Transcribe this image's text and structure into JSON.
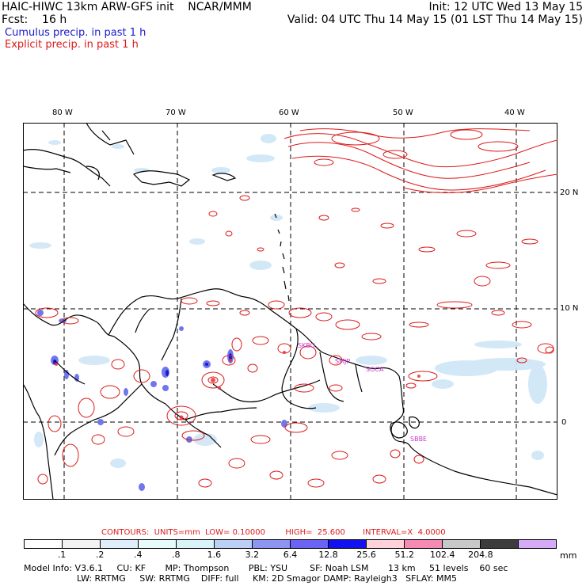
{
  "header": {
    "title": "HAIC-HIWC 13km ARW-GFS init    NCAR/MMM",
    "fcst": "Fcst:    16 h",
    "init": "Init: 12 UTC Wed 13 May 15",
    "valid": "Valid: 04 UTC Thu 14 May 15 (01 LST Thu 14 May 15)",
    "cumulus": "Cumulus precip. in past 1 h",
    "explicit": "Explicit precip. in past 1 h"
  },
  "map": {
    "lon_labels": [
      "80 W",
      "70 W",
      "60 W",
      "50 W",
      "40 W"
    ],
    "lat_labels": [
      "20 N",
      "10 N",
      "0"
    ],
    "stations": [
      "SKBO",
      "SMJP",
      "SOCA",
      "SBBE"
    ],
    "colors": {
      "coast": "#000000",
      "explicit": "#dd1a1a",
      "cumulus_light": "#cfe6f7",
      "cumulus_mid": "#6f76ee",
      "cumulus_dark": "#1a1acc"
    }
  },
  "legend": {
    "contours": "CONTOURS:  UNITS=mm  LOW= 0.10000        HIGH=  25.600       INTERVAL=X  4.0000",
    "labels": [
      ".1",
      ".2",
      ".4",
      ".8",
      "1.6",
      "3.2",
      "6.4",
      "12.8",
      "25.6",
      "51.2",
      "102.4",
      "204.8"
    ],
    "units": "mm",
    "colors": [
      "#ffffff",
      "#f2f2f2",
      "#dfeefa",
      "#e8fbfb",
      "#d9f3f8",
      "#bcd0f5",
      "#8e95f0",
      "#6b63f3",
      "#1212f0",
      "#ffd2d9",
      "#f58bb5",
      "#c8c8c8",
      "#3c3c3c",
      "#d6aaf6"
    ]
  },
  "model_info": {
    "line1": "Model Info: V3.6.1     CU: KF       MP: Thompson       PBL: YSU        SF: Noah LSM       13 km     51 levels    60 sec",
    "line2": "LW: RRTMG     SW: RRTMG    DIFF: full     KM: 2D Smagor DAMP: Rayleigh3   SFLAY: MM5"
  }
}
